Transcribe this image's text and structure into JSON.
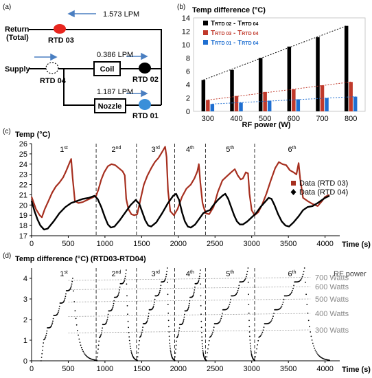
{
  "panel_letters": [
    "(a)",
    "(b)",
    "(c)",
    "(d)"
  ],
  "schematic": {
    "return_label": "Return",
    "return_sub": "(Total)",
    "supply_label": "Supply",
    "total_flow": "1.573 LPM",
    "coil_flow": "0.386 LPM",
    "nozzle_flow": "1.187 LPM",
    "coil_label": "Coil",
    "nozzle_label": "Nozzle",
    "rtd03": "RTD 03",
    "rtd04": "RTD 04",
    "rtd02": "RTD 02",
    "rtd01": "RTD 01",
    "colors": {
      "rtd03": "#e8261f",
      "rtd02": "#000000",
      "rtd01": "#3a8fd9",
      "arrow": "#4a7fc1"
    }
  },
  "chart_data": [
    {
      "id": "b",
      "type": "bar",
      "title": "Temp difference (°C)",
      "xlabel": "RF power (W)",
      "categories": [
        "300",
        "400",
        "500",
        "600",
        "700",
        "800"
      ],
      "ylim": [
        0,
        14
      ],
      "yticks": [
        "0",
        "2",
        "4",
        "6",
        "8",
        "10",
        "12",
        "14"
      ],
      "series": [
        {
          "name": "T_RTD 02 - T_RTD 04",
          "color": "#000000",
          "values": [
            4.7,
            6.2,
            8.0,
            9.7,
            11.1,
            12.8
          ]
        },
        {
          "name": "T_RTD 03 - T_RTD 04",
          "color": "#c0392b",
          "values": [
            1.7,
            2.3,
            2.9,
            3.3,
            3.9,
            4.4
          ]
        },
        {
          "name": "T_RTD 01 - T_RTD 04",
          "color": "#1f6fd1",
          "values": [
            1.1,
            1.3,
            1.6,
            1.8,
            2.0,
            2.2
          ]
        }
      ],
      "legend_labels": [
        {
          "main": "T",
          "sub1": "RTD 02",
          "mid": " - T",
          "sub2": "RTD 04"
        },
        {
          "main": "T",
          "sub1": "RTD 03",
          "mid": " - T",
          "sub2": "RTD 04"
        },
        {
          "main": "T",
          "sub1": "RTD 01",
          "mid": " - T",
          "sub2": "RTD 04"
        }
      ],
      "legend_position": "top-left",
      "trend_lines": "dashed"
    },
    {
      "id": "c",
      "type": "line",
      "title": "Temp (°C)",
      "xlabel": "Time (s)",
      "xlim": [
        0,
        4200
      ],
      "ylim": [
        17,
        26
      ],
      "xticks": [
        "0",
        "500",
        "1000",
        "1500",
        "2000",
        "2500",
        "3000",
        "3500",
        "4000"
      ],
      "yticks": [
        "17",
        "18",
        "19",
        "20",
        "21",
        "22",
        "23",
        "24",
        "25",
        "26"
      ],
      "cycle_labels": [
        {
          "n": "1",
          "s": "st"
        },
        {
          "n": "2",
          "s": "nd"
        },
        {
          "n": "3",
          "s": "rd"
        },
        {
          "n": "4",
          "s": "th"
        },
        {
          "n": "5",
          "s": "th"
        },
        {
          "n": "6",
          "s": "th"
        }
      ],
      "dividers": [
        880,
        1430,
        1950,
        2370,
        3040
      ],
      "series": [
        {
          "name": "Data (RTD 03)",
          "color": "#a62f1f",
          "points": [
            [
              0,
              20.8
            ],
            [
              60,
              19.6
            ],
            [
              110,
              19.0
            ],
            [
              140,
              18.8
            ],
            [
              180,
              19.6
            ],
            [
              230,
              20.4
            ],
            [
              280,
              21.2
            ],
            [
              330,
              21.8
            ],
            [
              380,
              22.2
            ],
            [
              430,
              22.7
            ],
            [
              470,
              23.3
            ],
            [
              510,
              24.0
            ],
            [
              540,
              24.5
            ],
            [
              560,
              22.6
            ],
            [
              590,
              20.4
            ],
            [
              640,
              20.2
            ],
            [
              700,
              20.3
            ],
            [
              760,
              20.5
            ],
            [
              820,
              20.7
            ],
            [
              880,
              20.9
            ],
            [
              910,
              21.5
            ],
            [
              950,
              22.5
            ],
            [
              990,
              23.2
            ],
            [
              1040,
              23.8
            ],
            [
              1090,
              24.0
            ],
            [
              1140,
              23.9
            ],
            [
              1190,
              23.6
            ],
            [
              1240,
              23.3
            ],
            [
              1270,
              22.9
            ],
            [
              1290,
              20.6
            ],
            [
              1320,
              19.6
            ],
            [
              1360,
              19.1
            ],
            [
              1400,
              19.0
            ],
            [
              1440,
              19.1
            ],
            [
              1480,
              20.4
            ],
            [
              1530,
              22.0
            ],
            [
              1580,
              22.9
            ],
            [
              1630,
              23.6
            ],
            [
              1680,
              24.2
            ],
            [
              1730,
              24.6
            ],
            [
              1780,
              25.2
            ],
            [
              1820,
              25.7
            ],
            [
              1840,
              24.7
            ],
            [
              1860,
              21.4
            ],
            [
              1890,
              19.4
            ],
            [
              1940,
              19.0
            ],
            [
              1990,
              19.6
            ],
            [
              2050,
              20.8
            ],
            [
              2110,
              21.6
            ],
            [
              2170,
              22.0
            ],
            [
              2220,
              22.6
            ],
            [
              2260,
              23.3
            ],
            [
              2280,
              24.0
            ],
            [
              2300,
              22.2
            ],
            [
              2330,
              20.2
            ],
            [
              2370,
              19.2
            ],
            [
              2420,
              19.1
            ],
            [
              2480,
              19.8
            ],
            [
              2540,
              21.3
            ],
            [
              2600,
              22.4
            ],
            [
              2660,
              22.8
            ],
            [
              2720,
              23.2
            ],
            [
              2770,
              23.5
            ],
            [
              2810,
              22.9
            ],
            [
              2850,
              22.5
            ],
            [
              2880,
              22.6
            ],
            [
              2920,
              23.2
            ],
            [
              2950,
              23.1
            ],
            [
              2970,
              21.1
            ],
            [
              3000,
              19.5
            ],
            [
              3040,
              19.0
            ],
            [
              3090,
              19.3
            ],
            [
              3140,
              20.0
            ],
            [
              3200,
              21.1
            ],
            [
              3260,
              22.4
            ],
            [
              3320,
              23.6
            ],
            [
              3370,
              24.2
            ],
            [
              3420,
              24.0
            ],
            [
              3470,
              23.9
            ],
            [
              3520,
              23.4
            ],
            [
              3570,
              23.2
            ],
            [
              3610,
              23.0
            ],
            [
              3640,
              24.1
            ],
            [
              3660,
              22.6
            ],
            [
              3700,
              20.7
            ],
            [
              3760,
              20.4
            ],
            [
              3830,
              20.1
            ],
            [
              3900,
              19.9
            ],
            [
              3960,
              20.4
            ],
            [
              4000,
              20.8
            ],
            [
              4060,
              21.0
            ]
          ]
        },
        {
          "name": "Data (RTD 04)",
          "color": "#000000",
          "points": [
            [
              0,
              20.4
            ],
            [
              40,
              19.4
            ],
            [
              80,
              18.6
            ],
            [
              120,
              18.0
            ],
            [
              170,
              17.6
            ],
            [
              220,
              17.7
            ],
            [
              300,
              18.4
            ],
            [
              380,
              19.2
            ],
            [
              460,
              19.8
            ],
            [
              540,
              20.2
            ],
            [
              620,
              20.4
            ],
            [
              700,
              20.6
            ],
            [
              780,
              20.7
            ],
            [
              860,
              20.9
            ],
            [
              900,
              20.6
            ],
            [
              950,
              19.8
            ],
            [
              1000,
              18.8
            ],
            [
              1040,
              18.1
            ],
            [
              1080,
              17.8
            ],
            [
              1130,
              17.9
            ],
            [
              1200,
              18.5
            ],
            [
              1280,
              19.3
            ],
            [
              1350,
              20.0
            ],
            [
              1420,
              20.5
            ],
            [
              1470,
              20.1
            ],
            [
              1510,
              19.3
            ],
            [
              1550,
              18.5
            ],
            [
              1590,
              18.0
            ],
            [
              1630,
              17.9
            ],
            [
              1700,
              18.3
            ],
            [
              1780,
              19.2
            ],
            [
              1860,
              20.2
            ],
            [
              1930,
              20.9
            ],
            [
              1970,
              21.1
            ],
            [
              2010,
              20.5
            ],
            [
              2050,
              19.3
            ],
            [
              2090,
              18.4
            ],
            [
              2130,
              17.9
            ],
            [
              2170,
              17.8
            ],
            [
              2230,
              18.1
            ],
            [
              2290,
              18.7
            ],
            [
              2340,
              19.2
            ],
            [
              2390,
              19.4
            ],
            [
              2430,
              19.5
            ],
            [
              2480,
              20.0
            ],
            [
              2540,
              20.5
            ],
            [
              2600,
              20.9
            ],
            [
              2640,
              21.1
            ],
            [
              2680,
              20.6
            ],
            [
              2720,
              19.8
            ],
            [
              2760,
              19.0
            ],
            [
              2800,
              18.4
            ],
            [
              2840,
              18.1
            ],
            [
              2880,
              18.1
            ],
            [
              2940,
              18.4
            ],
            [
              3000,
              18.8
            ],
            [
              3060,
              19.2
            ],
            [
              3120,
              19.8
            ],
            [
              3180,
              20.3
            ],
            [
              3230,
              20.7
            ],
            [
              3270,
              20.6
            ],
            [
              3310,
              20.0
            ],
            [
              3360,
              19.1
            ],
            [
              3410,
              18.4
            ],
            [
              3460,
              18.0
            ],
            [
              3510,
              17.9
            ],
            [
              3570,
              18.3
            ],
            [
              3640,
              18.9
            ],
            [
              3700,
              19.5
            ],
            [
              3760,
              19.8
            ],
            [
              3830,
              19.9
            ],
            [
              3900,
              20.2
            ],
            [
              3960,
              20.5
            ],
            [
              4000,
              20.7
            ],
            [
              4060,
              20.9
            ]
          ]
        }
      ],
      "legend_position": "right"
    },
    {
      "id": "d",
      "type": "scatter",
      "title": "Temp difference (°C) (RTD03-RTD04)",
      "xlabel": "Time (s)",
      "xlim": [
        0,
        4200
      ],
      "ylim": [
        0,
        4.5
      ],
      "xticks": [
        "0",
        "500",
        "1000",
        "1500",
        "2000",
        "2500",
        "3000",
        "3500",
        "4000"
      ],
      "yticks": [
        "0",
        "1",
        "2",
        "3",
        "4"
      ],
      "cycle_labels": [
        {
          "n": "1",
          "s": "st"
        },
        {
          "n": "2",
          "s": "nd"
        },
        {
          "n": "3",
          "s": "rd"
        },
        {
          "n": "4",
          "s": "th"
        },
        {
          "n": "5",
          "s": "th"
        },
        {
          "n": "6",
          "s": "th"
        }
      ],
      "dividers": [
        880,
        1430,
        1950,
        2370,
        3040
      ],
      "rf_power_title": "RF power",
      "rf_power_levels": [
        {
          "label": "300 Watts",
          "y": 1.5
        },
        {
          "label": "400 Watts",
          "y": 2.3
        },
        {
          "label": "500 Watts",
          "y": 3.0
        },
        {
          "label": "600 Watts",
          "y": 3.6
        },
        {
          "label": "700 Watts",
          "y": 4.05
        }
      ],
      "cycles": [
        {
          "start": 130,
          "peak_t": 560,
          "peak": 4.0,
          "end": 890
        },
        {
          "start": 890,
          "peak_t": 1290,
          "peak": 4.4,
          "end": 1440
        },
        {
          "start": 1440,
          "peak_t": 1850,
          "peak": 4.5,
          "end": 1950
        },
        {
          "start": 1950,
          "peak_t": 2300,
          "peak": 4.4,
          "end": 2380
        },
        {
          "start": 2380,
          "peak_t": 2950,
          "peak": 4.5,
          "end": 3040
        },
        {
          "start": 3040,
          "peak_t": 3720,
          "peak": 4.5,
          "end": 4060
        }
      ],
      "point_color": "#000000"
    }
  ]
}
